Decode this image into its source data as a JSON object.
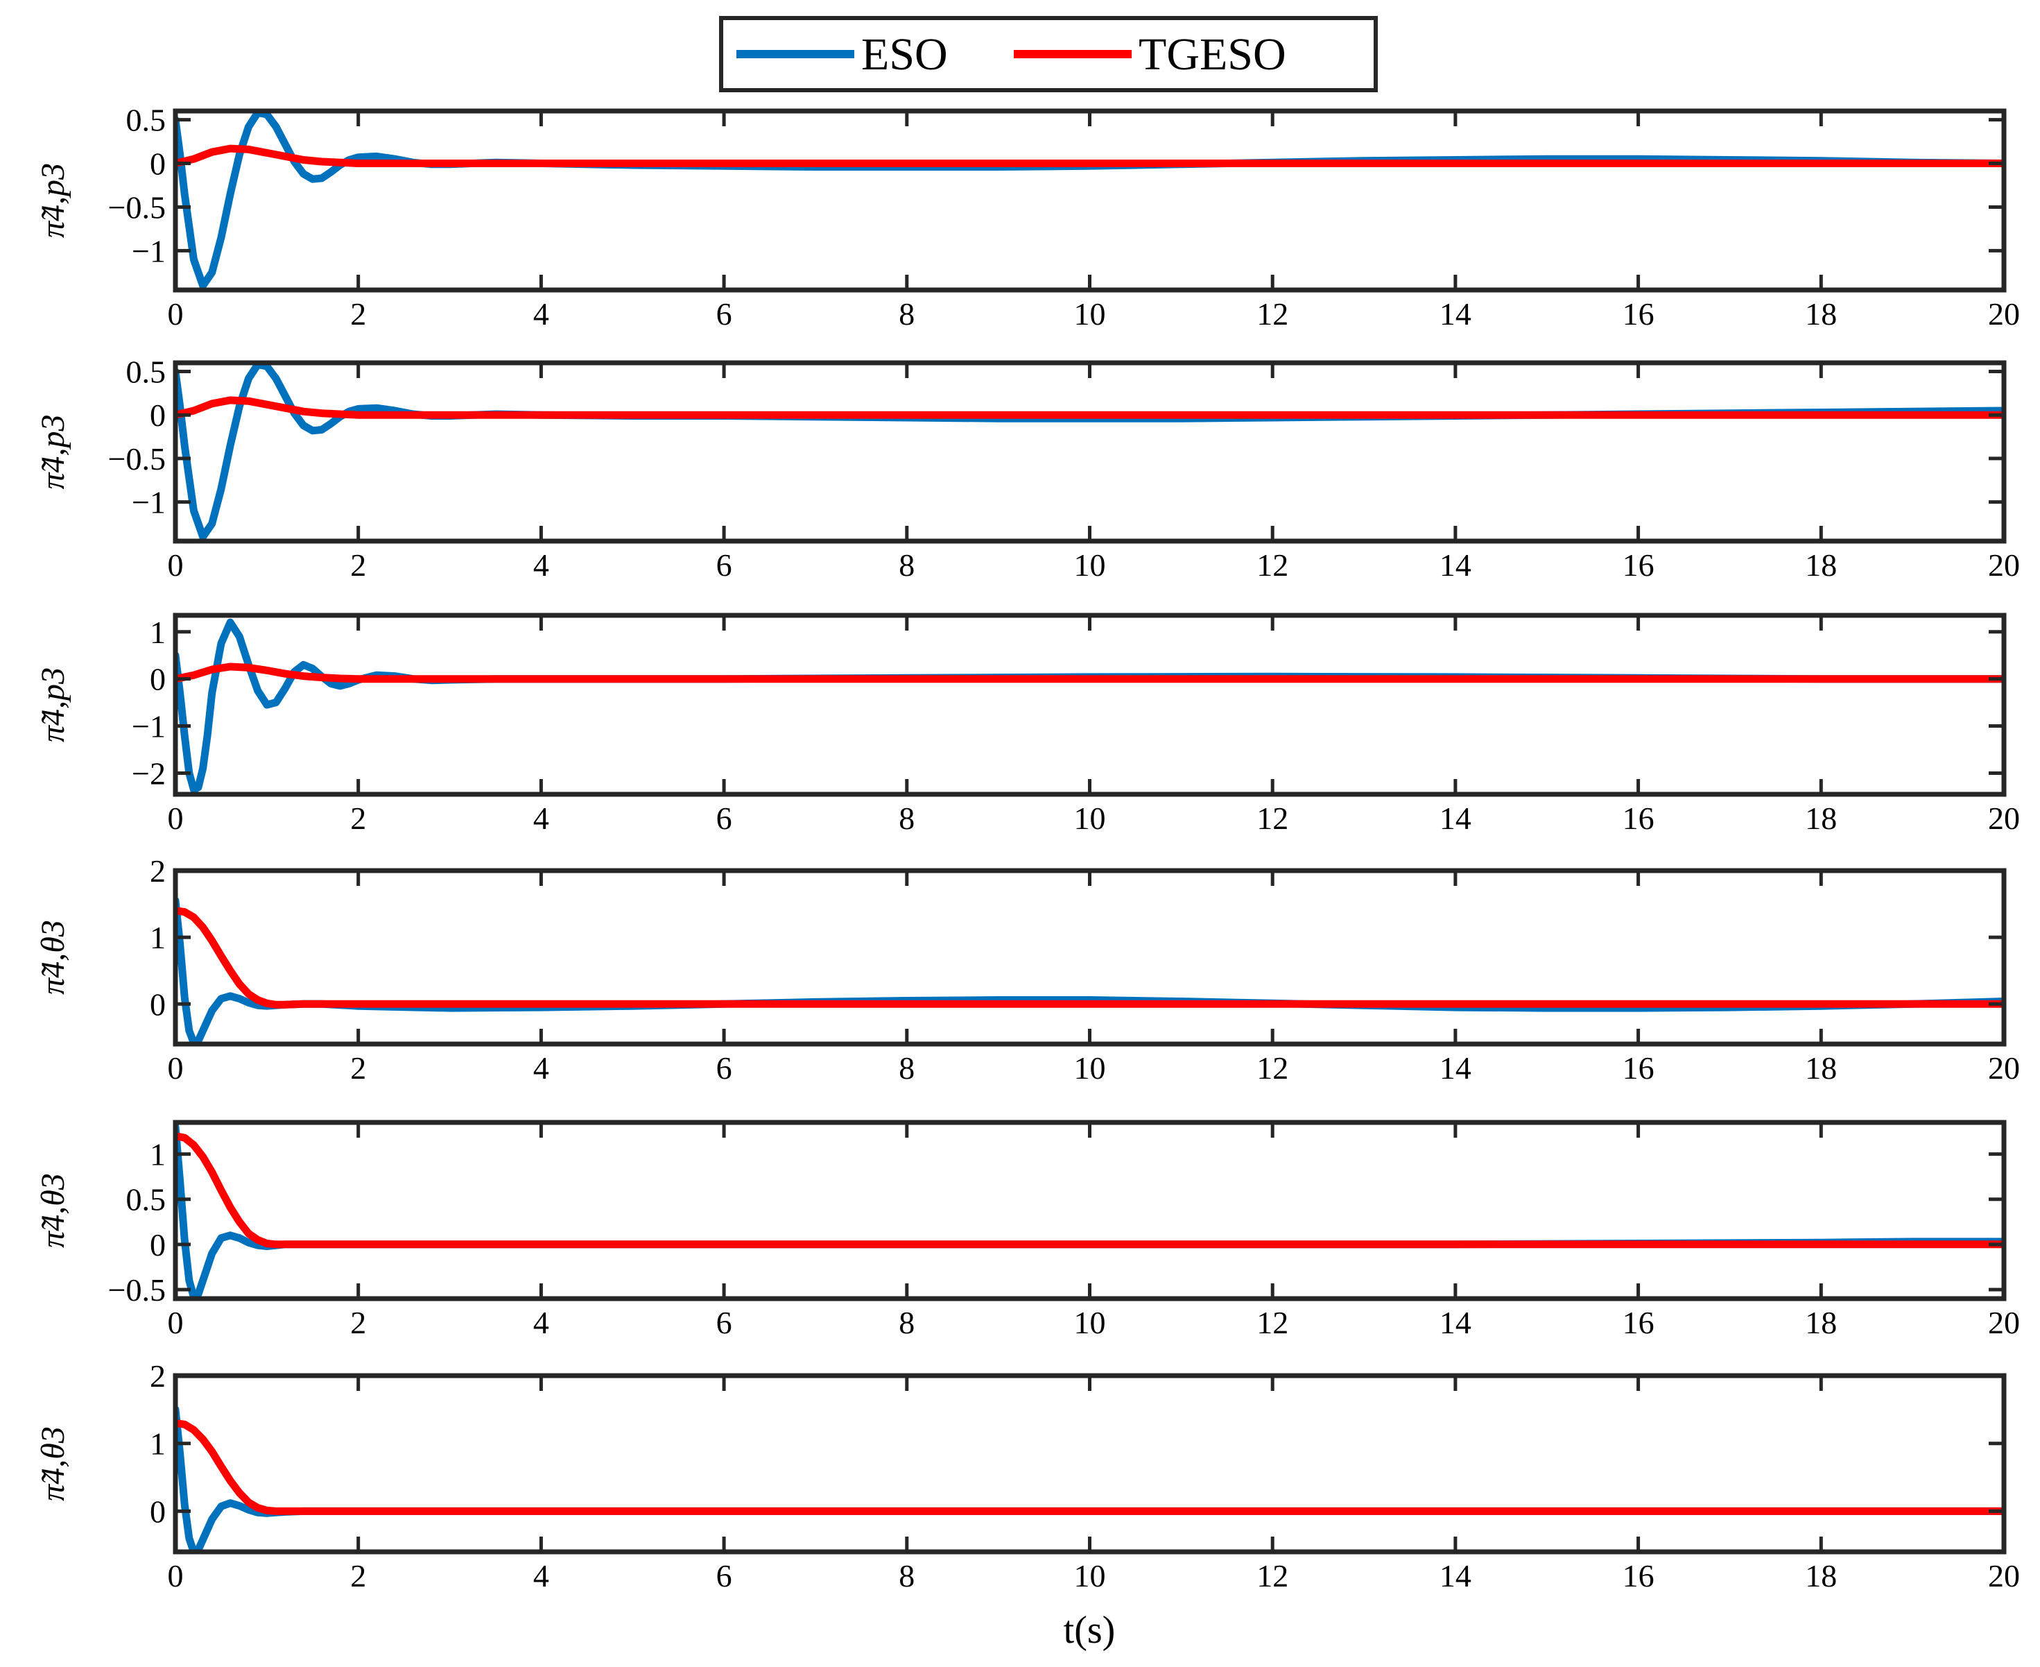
{
  "legend": {
    "items": [
      {
        "label": "ESO",
        "color": "#0072BD"
      },
      {
        "label": "TGESO",
        "color": "#FF0000"
      }
    ],
    "placement": "top-center"
  },
  "x_axis_label": "t(s)",
  "chart_data": [
    {
      "type": "line",
      "ylabel": "π̃4,p3",
      "xlim": [
        0,
        20
      ],
      "ylim": [
        -1.45,
        0.6
      ],
      "xticks": [
        0,
        2,
        4,
        6,
        8,
        10,
        12,
        14,
        16,
        18,
        20
      ],
      "yticks": [
        {
          "v": 0.5,
          "t": "0.5"
        },
        {
          "v": 0,
          "t": "0"
        },
        {
          "v": -0.5,
          "t": "−0.5"
        },
        {
          "v": -1,
          "t": "−1"
        }
      ],
      "series": [
        {
          "name": "ESO",
          "x": [
            0,
            0.05,
            0.1,
            0.2,
            0.3,
            0.4,
            0.5,
            0.6,
            0.7,
            0.8,
            0.9,
            1.0,
            1.1,
            1.2,
            1.3,
            1.4,
            1.5,
            1.6,
            1.7,
            1.8,
            1.9,
            2.0,
            2.2,
            2.4,
            2.6,
            2.8,
            3.0,
            3.5,
            4,
            5,
            6,
            7,
            8,
            9,
            10,
            11,
            12,
            13,
            14,
            15,
            16,
            17,
            18,
            19,
            20
          ],
          "values": [
            0.5,
            0.1,
            -0.35,
            -1.1,
            -1.4,
            -1.25,
            -0.85,
            -0.35,
            0.1,
            0.42,
            0.58,
            0.56,
            0.42,
            0.22,
            0.02,
            -0.12,
            -0.18,
            -0.17,
            -0.1,
            -0.02,
            0.04,
            0.07,
            0.08,
            0.05,
            0.01,
            -0.01,
            -0.01,
            0.01,
            0.0,
            -0.02,
            -0.03,
            -0.04,
            -0.04,
            -0.04,
            -0.03,
            -0.01,
            0.01,
            0.03,
            0.04,
            0.05,
            0.05,
            0.04,
            0.03,
            0.01,
            0.0
          ]
        },
        {
          "name": "TGESO",
          "x": [
            0,
            0.2,
            0.4,
            0.6,
            0.8,
            1.0,
            1.2,
            1.4,
            1.6,
            1.8,
            2.0,
            2.5,
            3,
            4,
            6,
            8,
            10,
            12,
            14,
            16,
            18,
            20
          ],
          "values": [
            0.0,
            0.05,
            0.13,
            0.17,
            0.16,
            0.12,
            0.08,
            0.04,
            0.02,
            0.01,
            0.0,
            0.0,
            0.0,
            0.0,
            0.0,
            0.0,
            0.0,
            0.0,
            0.0,
            0.0,
            0.0,
            0.0
          ]
        }
      ]
    },
    {
      "type": "line",
      "ylabel": "π̃4,p3",
      "xlim": [
        0,
        20
      ],
      "ylim": [
        -1.45,
        0.6
      ],
      "xticks": [
        0,
        2,
        4,
        6,
        8,
        10,
        12,
        14,
        16,
        18,
        20
      ],
      "yticks": [
        {
          "v": 0.5,
          "t": "0.5"
        },
        {
          "v": 0,
          "t": "0"
        },
        {
          "v": -0.5,
          "t": "−0.5"
        },
        {
          "v": -1,
          "t": "−1"
        }
      ],
      "series": [
        {
          "name": "ESO",
          "x": [
            0,
            0.05,
            0.1,
            0.2,
            0.3,
            0.4,
            0.5,
            0.6,
            0.7,
            0.8,
            0.9,
            1.0,
            1.1,
            1.2,
            1.3,
            1.4,
            1.5,
            1.6,
            1.7,
            1.8,
            1.9,
            2.0,
            2.2,
            2.4,
            2.6,
            2.8,
            3.0,
            3.5,
            4,
            5,
            6,
            7,
            8,
            9,
            10,
            11,
            12,
            13,
            14,
            15,
            16,
            17,
            18,
            19,
            20
          ],
          "values": [
            0.5,
            0.1,
            -0.35,
            -1.1,
            -1.4,
            -1.25,
            -0.85,
            -0.35,
            0.1,
            0.42,
            0.58,
            0.56,
            0.42,
            0.22,
            0.02,
            -0.12,
            -0.18,
            -0.17,
            -0.1,
            -0.02,
            0.04,
            0.07,
            0.08,
            0.05,
            0.01,
            -0.01,
            -0.01,
            0.01,
            0.0,
            -0.01,
            -0.01,
            -0.02,
            -0.03,
            -0.04,
            -0.04,
            -0.04,
            -0.03,
            -0.02,
            -0.01,
            0.0,
            0.01,
            0.02,
            0.03,
            0.04,
            0.05
          ]
        },
        {
          "name": "TGESO",
          "x": [
            0,
            0.2,
            0.4,
            0.6,
            0.8,
            1.0,
            1.2,
            1.4,
            1.6,
            1.8,
            2.0,
            2.5,
            3,
            4,
            6,
            8,
            10,
            12,
            14,
            16,
            18,
            20
          ],
          "values": [
            0.0,
            0.05,
            0.13,
            0.17,
            0.16,
            0.12,
            0.08,
            0.04,
            0.02,
            0.01,
            0.0,
            0.0,
            0.0,
            0.0,
            0.0,
            0.0,
            0.0,
            0.0,
            0.0,
            0.0,
            0.0,
            0.0
          ]
        }
      ]
    },
    {
      "type": "line",
      "ylabel": "π̃4,p3",
      "xlim": [
        0,
        20
      ],
      "ylim": [
        -2.45,
        1.35
      ],
      "xticks": [
        0,
        2,
        4,
        6,
        8,
        10,
        12,
        14,
        16,
        18,
        20
      ],
      "yticks": [
        {
          "v": 1,
          "t": "1"
        },
        {
          "v": 0,
          "t": "0"
        },
        {
          "v": -1,
          "t": "−1"
        },
        {
          "v": -2,
          "t": "−2"
        }
      ],
      "series": [
        {
          "name": "ESO",
          "x": [
            0,
            0.05,
            0.1,
            0.15,
            0.2,
            0.25,
            0.3,
            0.35,
            0.4,
            0.5,
            0.6,
            0.7,
            0.8,
            0.9,
            1.0,
            1.1,
            1.2,
            1.3,
            1.4,
            1.5,
            1.6,
            1.7,
            1.8,
            1.9,
            2.0,
            2.2,
            2.4,
            2.6,
            2.8,
            3.0,
            3.5,
            4,
            6,
            8,
            10,
            12,
            14,
            16,
            18,
            20
          ],
          "values": [
            0.5,
            -0.3,
            -1.2,
            -2.0,
            -2.35,
            -2.3,
            -1.9,
            -1.2,
            -0.3,
            0.75,
            1.2,
            0.9,
            0.3,
            -0.25,
            -0.55,
            -0.5,
            -0.2,
            0.15,
            0.3,
            0.22,
            0.05,
            -0.1,
            -0.15,
            -0.1,
            -0.02,
            0.08,
            0.06,
            0.0,
            -0.03,
            -0.02,
            0.0,
            0.0,
            0.0,
            0.02,
            0.04,
            0.05,
            0.04,
            0.02,
            0.0,
            0.0
          ]
        },
        {
          "name": "TGESO",
          "x": [
            0,
            0.2,
            0.4,
            0.6,
            0.8,
            1.0,
            1.2,
            1.4,
            1.6,
            1.8,
            2.0,
            2.5,
            3,
            4,
            6,
            8,
            10,
            12,
            14,
            16,
            18,
            20
          ],
          "values": [
            0.0,
            0.08,
            0.2,
            0.26,
            0.24,
            0.18,
            0.11,
            0.06,
            0.03,
            0.01,
            0.0,
            0.0,
            0.0,
            0.0,
            0.0,
            0.0,
            0.0,
            0.0,
            0.0,
            0.0,
            0.0,
            0.0
          ]
        }
      ]
    },
    {
      "type": "line",
      "ylabel": "π̃4,θ3",
      "xlim": [
        0,
        20
      ],
      "ylim": [
        -0.6,
        2.0
      ],
      "xticks": [
        0,
        2,
        4,
        6,
        8,
        10,
        12,
        14,
        16,
        18,
        20
      ],
      "yticks": [
        {
          "v": 2,
          "t": "2"
        },
        {
          "v": 1,
          "t": "1"
        },
        {
          "v": 0,
          "t": "0"
        }
      ],
      "series": [
        {
          "name": "ESO",
          "x": [
            0,
            0.05,
            0.1,
            0.15,
            0.2,
            0.25,
            0.3,
            0.4,
            0.5,
            0.6,
            0.7,
            0.8,
            0.9,
            1.0,
            1.1,
            1.2,
            1.4,
            1.6,
            2,
            3,
            4,
            5,
            6,
            7,
            8,
            9,
            10,
            11,
            12,
            13,
            14,
            15,
            16,
            17,
            18,
            19,
            20
          ],
          "values": [
            1.55,
            0.9,
            0.1,
            -0.4,
            -0.58,
            -0.55,
            -0.4,
            -0.1,
            0.08,
            0.12,
            0.08,
            0.02,
            -0.02,
            -0.03,
            -0.02,
            -0.01,
            0.0,
            0.0,
            -0.03,
            -0.06,
            -0.05,
            -0.03,
            0.0,
            0.03,
            0.05,
            0.06,
            0.06,
            0.04,
            0.01,
            -0.02,
            -0.05,
            -0.06,
            -0.06,
            -0.05,
            -0.03,
            0.0,
            0.04
          ]
        },
        {
          "name": "TGESO",
          "x": [
            0,
            0.1,
            0.2,
            0.3,
            0.4,
            0.5,
            0.6,
            0.7,
            0.8,
            0.9,
            1.0,
            1.1,
            1.2,
            1.4,
            1.6,
            2,
            4,
            6,
            8,
            10,
            12,
            14,
            16,
            18,
            20
          ],
          "values": [
            1.4,
            1.38,
            1.3,
            1.15,
            0.95,
            0.72,
            0.5,
            0.3,
            0.15,
            0.06,
            0.01,
            -0.01,
            -0.01,
            0.0,
            0.0,
            0.0,
            0.0,
            0.0,
            0.0,
            0.0,
            0.0,
            0.0,
            0.0,
            0.0,
            0.0
          ]
        }
      ]
    },
    {
      "type": "line",
      "ylabel": "π̃4,θ3",
      "xlim": [
        0,
        20
      ],
      "ylim": [
        -0.6,
        1.35
      ],
      "xticks": [
        0,
        2,
        4,
        6,
        8,
        10,
        12,
        14,
        16,
        18,
        20
      ],
      "yticks": [
        {
          "v": 1,
          "t": "1"
        },
        {
          "v": 0.5,
          "t": "0.5"
        },
        {
          "v": 0,
          "t": "0"
        },
        {
          "v": -0.5,
          "t": "−0.5"
        }
      ],
      "series": [
        {
          "name": "ESO",
          "x": [
            0,
            0.05,
            0.1,
            0.15,
            0.2,
            0.25,
            0.3,
            0.4,
            0.5,
            0.6,
            0.7,
            0.8,
            0.9,
            1.0,
            1.1,
            1.2,
            1.4,
            1.6,
            2,
            4,
            6,
            8,
            10,
            12,
            14,
            16,
            18,
            19,
            20
          ],
          "values": [
            1.3,
            0.7,
            0.05,
            -0.4,
            -0.58,
            -0.55,
            -0.4,
            -0.1,
            0.07,
            0.1,
            0.07,
            0.02,
            -0.01,
            -0.02,
            -0.01,
            0.0,
            0.0,
            0.0,
            0.0,
            0.0,
            0.0,
            0.0,
            0.0,
            0.0,
            0.0,
            0.01,
            0.02,
            0.03,
            0.03
          ]
        },
        {
          "name": "TGESO",
          "x": [
            0,
            0.1,
            0.2,
            0.3,
            0.4,
            0.5,
            0.6,
            0.7,
            0.8,
            0.9,
            1.0,
            1.1,
            1.2,
            1.4,
            1.6,
            2,
            4,
            6,
            8,
            10,
            12,
            14,
            16,
            18,
            20
          ],
          "values": [
            1.2,
            1.18,
            1.1,
            0.97,
            0.8,
            0.6,
            0.41,
            0.25,
            0.12,
            0.05,
            0.01,
            0.0,
            0.0,
            0.0,
            0.0,
            0.0,
            0.0,
            0.0,
            0.0,
            0.0,
            0.0,
            0.0,
            0.0,
            0.0,
            0.0
          ]
        }
      ]
    },
    {
      "type": "line",
      "ylabel": "π̃4,θ3",
      "xlim": [
        0,
        20
      ],
      "ylim": [
        -0.6,
        2.0
      ],
      "xticks": [
        0,
        2,
        4,
        6,
        8,
        10,
        12,
        14,
        16,
        18,
        20
      ],
      "yticks": [
        {
          "v": 2,
          "t": "2"
        },
        {
          "v": 1,
          "t": "1"
        },
        {
          "v": 0,
          "t": "0"
        }
      ],
      "series": [
        {
          "name": "ESO",
          "x": [
            0,
            0.05,
            0.1,
            0.15,
            0.2,
            0.25,
            0.3,
            0.4,
            0.5,
            0.6,
            0.7,
            0.8,
            0.9,
            1.0,
            1.1,
            1.2,
            1.4,
            1.6,
            2,
            4,
            6,
            8,
            10,
            12,
            14,
            16,
            18,
            20
          ],
          "values": [
            1.5,
            0.85,
            0.1,
            -0.4,
            -0.6,
            -0.57,
            -0.42,
            -0.12,
            0.07,
            0.12,
            0.08,
            0.02,
            -0.02,
            -0.03,
            -0.02,
            -0.01,
            0.0,
            0.0,
            0.0,
            0.0,
            0.0,
            0.0,
            0.0,
            0.0,
            0.0,
            0.0,
            0.0,
            0.0
          ]
        },
        {
          "name": "TGESO",
          "x": [
            0,
            0.1,
            0.2,
            0.3,
            0.4,
            0.5,
            0.6,
            0.7,
            0.8,
            0.9,
            1.0,
            1.1,
            1.2,
            1.4,
            1.6,
            2,
            4,
            6,
            8,
            10,
            12,
            14,
            16,
            18,
            20
          ],
          "values": [
            1.3,
            1.28,
            1.2,
            1.06,
            0.88,
            0.66,
            0.45,
            0.27,
            0.13,
            0.05,
            0.01,
            0.0,
            0.0,
            0.0,
            0.0,
            0.0,
            0.0,
            0.0,
            0.0,
            0.0,
            0.0,
            0.0,
            0.0,
            0.0,
            0.0
          ]
        }
      ]
    }
  ]
}
